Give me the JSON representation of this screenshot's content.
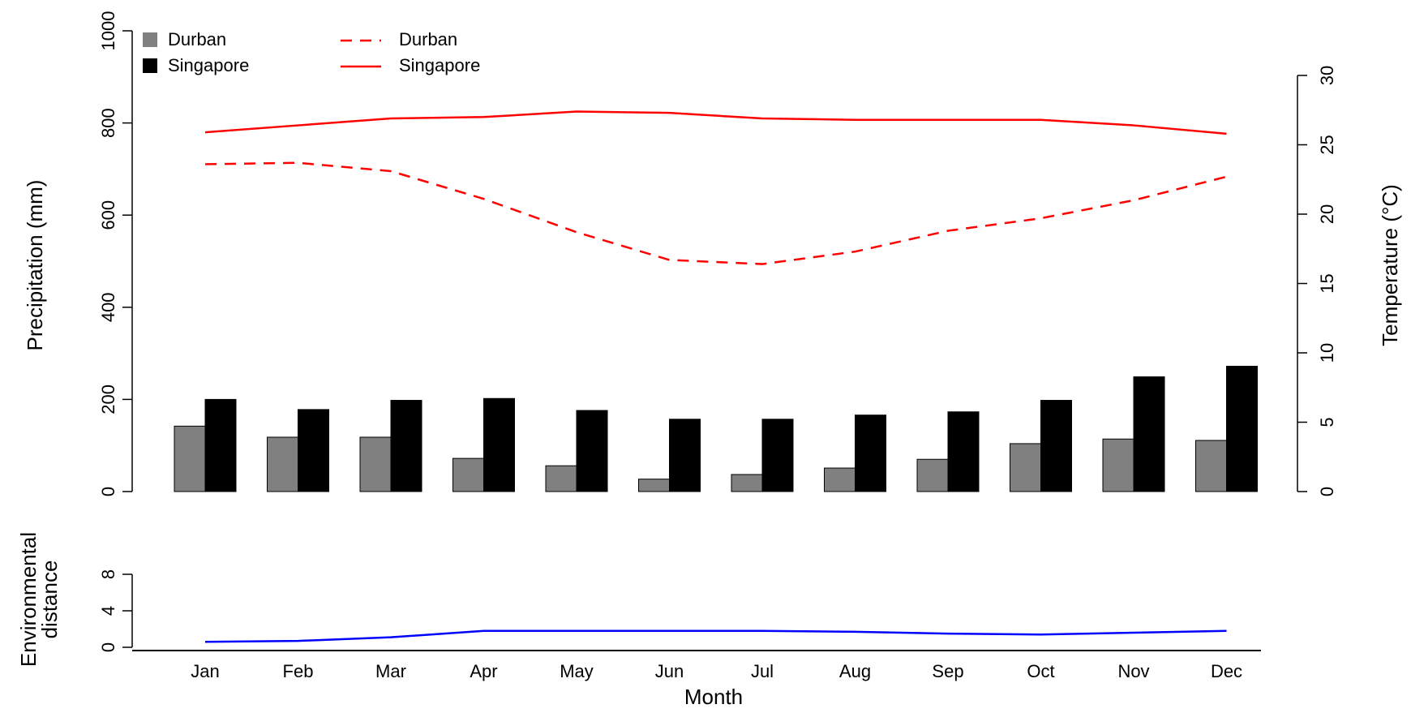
{
  "chart_data": [
    {
      "type": "bar",
      "categories": [
        "Jan",
        "Feb",
        "Mar",
        "Apr",
        "May",
        "Jun",
        "Jul",
        "Aug",
        "Sep",
        "Oct",
        "Nov",
        "Dec"
      ],
      "ylabel": "Precipitation (mm)",
      "ylim": [
        0,
        1000
      ],
      "yticks": [
        "0",
        "200",
        "400",
        "600",
        "800",
        "1000"
      ],
      "y2label": "Temperature (°C)",
      "y2lim": [
        0,
        30
      ],
      "y2ticks": [
        "0",
        "5",
        "10",
        "15",
        "20",
        "25",
        "30"
      ],
      "series": [
        {
          "name": "Durban",
          "type": "bar",
          "color": "#808080",
          "values": [
            142,
            118,
            118,
            72,
            56,
            27,
            37,
            51,
            70,
            104,
            114,
            111
          ]
        },
        {
          "name": "Singapore",
          "type": "bar",
          "color": "#000000",
          "values": [
            200,
            178,
            198,
            202,
            176,
            157,
            157,
            166,
            173,
            198,
            249,
            272
          ]
        },
        {
          "name": "Durban",
          "type": "line",
          "style": "dashed",
          "color": "#ff0000",
          "axis": "right",
          "values": [
            23.6,
            23.7,
            23.1,
            21.1,
            18.7,
            16.7,
            16.4,
            17.3,
            18.8,
            19.7,
            21.0,
            22.7
          ]
        },
        {
          "name": "Singapore",
          "type": "line",
          "style": "solid",
          "color": "#ff0000",
          "axis": "right",
          "values": [
            25.9,
            26.4,
            26.9,
            27.0,
            27.4,
            27.3,
            26.9,
            26.8,
            26.8,
            26.8,
            26.4,
            25.8
          ]
        }
      ],
      "legend": {
        "placement": "top-left",
        "bars": [
          {
            "label": "Durban",
            "color": "#808080"
          },
          {
            "label": "Singapore",
            "color": "#000000"
          }
        ],
        "lines": [
          {
            "label": "Durban",
            "style": "dashed",
            "color": "#ff0000"
          },
          {
            "label": "Singapore",
            "style": "solid",
            "color": "#ff0000"
          }
        ]
      }
    },
    {
      "type": "line",
      "categories": [
        "Jan",
        "Feb",
        "Mar",
        "Apr",
        "May",
        "Jun",
        "Jul",
        "Aug",
        "Sep",
        "Oct",
        "Nov",
        "Dec"
      ],
      "xlabel": "Month",
      "ylabel": [
        "Environmental",
        "distance"
      ],
      "ylim": [
        0,
        8
      ],
      "yticks": [
        "0",
        "4",
        "8"
      ],
      "series": [
        {
          "type": "line",
          "color": "#0000ff",
          "values": [
            0.6,
            0.7,
            1.1,
            1.8,
            1.8,
            1.8,
            1.8,
            1.7,
            1.5,
            1.4,
            1.6,
            1.8
          ]
        }
      ]
    }
  ]
}
